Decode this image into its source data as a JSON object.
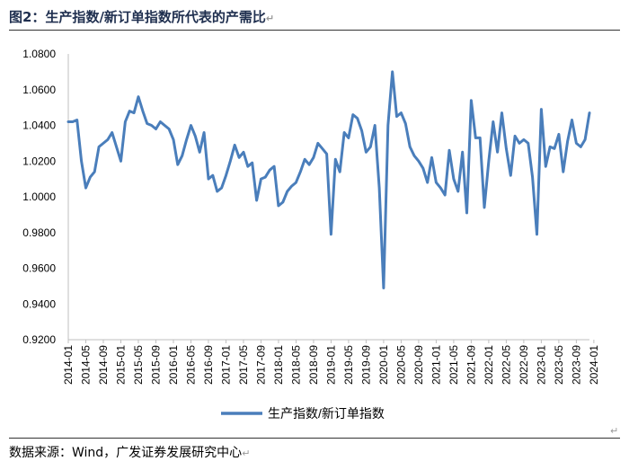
{
  "header": {
    "title": "图2：生产指数/新订单指数所代表的产需比",
    "return_mark": "↵"
  },
  "footer": {
    "source": "数据来源：Wind，广发证券发展研究中心",
    "return_mark": "↵"
  },
  "colors": {
    "series": "#4a7ebb",
    "axis": "#bfbfbf",
    "rule": "#333333"
  },
  "chart_data": {
    "type": "line",
    "title": "",
    "xlabel": "",
    "ylabel": "",
    "ylim": [
      0.92,
      1.08
    ],
    "yticks": [
      "0.9200",
      "0.9400",
      "0.9600",
      "0.9800",
      "1.0000",
      "1.0200",
      "1.0400",
      "1.0600",
      "1.0800"
    ],
    "grid": false,
    "legend_position": "bottom",
    "x_tick_labels": [
      "2014-01",
      "2014-05",
      "2014-09",
      "2015-01",
      "2015-05",
      "2015-09",
      "2016-01",
      "2016-05",
      "2016-09",
      "2017-01",
      "2017-05",
      "2017-09",
      "2018-01",
      "2018-05",
      "2018-09",
      "2019-01",
      "2019-05",
      "2019-09",
      "2020-01",
      "2020-05",
      "2020-09",
      "2021-01",
      "2021-05",
      "2021-09",
      "2022-01",
      "2022-05",
      "2022-09",
      "2023-01",
      "2023-05",
      "2023-09",
      "2024-01"
    ],
    "series": [
      {
        "name": "生产指数/新订单指数",
        "start": "2014-01",
        "frequency": "monthly",
        "values": [
          1.042,
          1.042,
          1.043,
          1.02,
          1.005,
          1.011,
          1.014,
          1.028,
          1.03,
          1.032,
          1.036,
          1.028,
          1.02,
          1.042,
          1.048,
          1.047,
          1.056,
          1.048,
          1.041,
          1.04,
          1.038,
          1.042,
          1.04,
          1.038,
          1.032,
          1.018,
          1.023,
          1.032,
          1.04,
          1.034,
          1.025,
          1.036,
          1.01,
          1.012,
          1.003,
          1.005,
          1.012,
          1.02,
          1.029,
          1.022,
          1.025,
          1.017,
          1.019,
          0.998,
          1.01,
          1.011,
          1.015,
          1.017,
          0.995,
          0.997,
          1.003,
          1.006,
          1.008,
          1.014,
          1.021,
          1.018,
          1.022,
          1.03,
          1.027,
          1.024,
          0.979,
          1.021,
          1.014,
          1.036,
          1.033,
          1.046,
          1.044,
          1.037,
          1.025,
          1.028,
          1.04,
          1.005,
          0.949,
          1.04,
          1.07,
          1.045,
          1.047,
          1.041,
          1.028,
          1.023,
          1.02,
          1.016,
          1.008,
          1.022,
          1.008,
          1.005,
          1.001,
          1.026,
          1.01,
          1.003,
          1.025,
          0.991,
          1.054,
          1.033,
          1.033,
          0.994,
          1.02,
          1.042,
          1.025,
          1.047,
          1.027,
          1.012,
          1.034,
          1.03,
          1.032,
          1.03,
          1.011,
          0.979,
          1.049,
          1.017,
          1.028,
          1.027,
          1.035,
          1.014,
          1.031,
          1.043,
          1.03,
          1.028,
          1.032,
          1.047
        ]
      }
    ]
  }
}
